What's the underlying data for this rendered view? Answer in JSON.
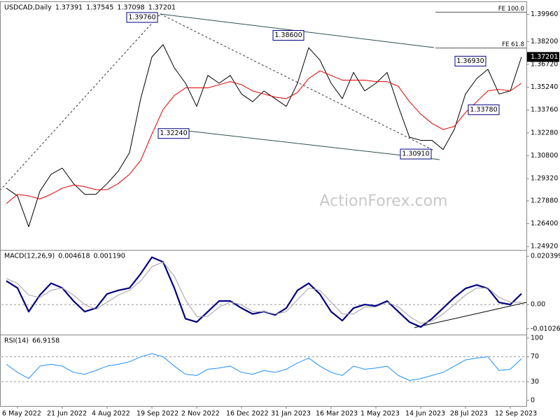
{
  "chart_data": [
    {
      "type": "line",
      "symbol": "USDCAD,Daily",
      "ohlc": [
        1.37391,
        1.37545,
        1.37098,
        1.37201
      ],
      "watermark": "ActionForex.com",
      "ylim": [
        1.247,
        1.408
      ],
      "yticks": [
        {
          "value": 1.3996,
          "label": "1.39960"
        },
        {
          "value": 1.382,
          "label": "1.38200"
        },
        {
          "value": 1.3672,
          "label": "1.36720"
        },
        {
          "value": 1.3524,
          "label": "1.35240"
        },
        {
          "value": 1.3376,
          "label": "1.33760"
        },
        {
          "value": 1.3228,
          "label": "1.32280"
        },
        {
          "value": 1.308,
          "label": "1.30800"
        },
        {
          "value": 1.2932,
          "label": "1.29320"
        },
        {
          "value": 1.2788,
          "label": "1.27880"
        },
        {
          "value": 1.264,
          "label": "1.26400"
        },
        {
          "value": 1.2492,
          "label": "1.24920"
        }
      ],
      "last_price": 1.37201,
      "series": [
        {
          "name": "Close",
          "color": "#000000",
          "values": [
            1.287,
            1.282,
            1.262,
            1.285,
            1.296,
            1.3,
            1.29,
            1.283,
            1.283,
            1.29,
            1.298,
            1.31,
            1.345,
            1.372,
            1.38,
            1.365,
            1.355,
            1.34,
            1.36,
            1.355,
            1.36,
            1.348,
            1.343,
            1.35,
            1.345,
            1.34,
            1.355,
            1.378,
            1.37,
            1.355,
            1.345,
            1.362,
            1.35,
            1.355,
            1.362,
            1.34,
            1.32,
            1.318,
            1.318,
            1.312,
            1.325,
            1.348,
            1.358,
            1.364,
            1.348,
            1.35,
            1.372
          ]
        },
        {
          "name": "MA",
          "color": "#e00000",
          "values": [
            1.277,
            1.283,
            1.282,
            1.28,
            1.283,
            1.287,
            1.289,
            1.288,
            1.286,
            1.286,
            1.29,
            1.296,
            1.305,
            1.322,
            1.338,
            1.347,
            1.352,
            1.352,
            1.352,
            1.354,
            1.356,
            1.354,
            1.35,
            1.348,
            1.346,
            1.345,
            1.349,
            1.358,
            1.363,
            1.36,
            1.357,
            1.357,
            1.357,
            1.356,
            1.356,
            1.353,
            1.343,
            1.335,
            1.329,
            1.325,
            1.327,
            1.336,
            1.343,
            1.35,
            1.351,
            1.35,
            1.355
          ]
        }
      ],
      "annotations": [
        {
          "value": 1.3976,
          "label": "1.39760"
        },
        {
          "value": 1.386,
          "label": "1.38600"
        },
        {
          "value": 1.3693,
          "label": "1.36930"
        },
        {
          "value": 1.3378,
          "label": "1.33780"
        },
        {
          "value": 1.3224,
          "label": "1.32240"
        },
        {
          "value": 1.3091,
          "label": "1.30910"
        }
      ],
      "levels": [
        {
          "value": 1.401,
          "label": "FE 100.0"
        },
        {
          "value": 1.3778,
          "label": "FE 61.8"
        }
      ]
    },
    {
      "type": "line",
      "indicator": "MACD(12,26,9)",
      "readings": [
        0.004618,
        {
          "value": 0.00119,
          "label": "0.001190"
        }
      ],
      "ylim": [
        -0.0127,
        0.0231
      ],
      "yticks": [
        0.020399,
        {
          "value": 0,
          "label": "0.00"
        },
        -0.01026
      ],
      "levels": [
        0
      ],
      "series": [
        {
          "name": "MACD",
          "color": "#000080",
          "values": [
            0.01,
            0.007,
            -0.003,
            0.004,
            0.009,
            0.007,
            0.0015,
            -0.003,
            -0.0015,
            0.0045,
            0.006,
            0.007,
            0.013,
            0.02,
            0.018,
            0.007,
            -0.006,
            -0.0074,
            -0.003,
            0.0015,
            0.0015,
            -0.0015,
            -0.004,
            -0.003,
            -0.0044,
            -0.0015,
            0.006,
            0.009,
            0.0044,
            -0.003,
            -0.0068,
            -0.0015,
            0,
            -0.0006,
            0.0015,
            -0.003,
            -0.0074,
            -0.0095,
            -0.006,
            -0.0015,
            0.003,
            0.0068,
            0.0083,
            0.0068,
            0.0009,
            0,
            0.0046
          ]
        },
        {
          "name": "Signal",
          "color": "#a0a0a0",
          "values": [
            0.011,
            0.009,
            0.004,
            0.003,
            0.006,
            0.007,
            0.004,
            0,
            -0.002,
            0.001,
            0.004,
            0.006,
            0.01,
            0.016,
            0.018,
            0.012,
            0.002,
            -0.005,
            -0.005,
            -0.001,
            0.001,
            0,
            -0.003,
            -0.003,
            -0.004,
            -0.003,
            0.002,
            0.007,
            0.006,
            0.001,
            -0.004,
            -0.004,
            -0.001,
            -0.001,
            0.001,
            -0.001,
            -0.005,
            -0.008,
            -0.007,
            -0.004,
            0,
            0.004,
            0.007,
            0.007,
            0.003,
            0.001,
            0.001
          ]
        }
      ]
    },
    {
      "type": "line",
      "indicator": "RSI(14)",
      "readings": [
        66.9158
      ],
      "ylim": [
        -9,
        105.6
      ],
      "yticks": [
        100,
        70,
        30,
        0
      ],
      "levels": [
        70,
        30
      ],
      "categories": [
        null,
        "6 May 2022",
        null,
        null,
        null,
        "21 Jun 2022",
        null,
        null,
        null,
        "4 Aug 2022",
        null,
        null,
        null,
        "19 Sep 2022",
        null,
        null,
        null,
        "2 Nov 2022",
        null,
        null,
        null,
        "16 Dec 2022",
        null,
        null,
        null,
        "31 Jan 2023",
        null,
        null,
        null,
        "16 Mar 2023",
        null,
        null,
        null,
        "1 May 2023",
        null,
        null,
        null,
        "14 Jun 2023",
        null,
        null,
        null,
        "28 Jul 2023",
        null,
        null,
        null,
        "12 Sep 2023",
        null
      ],
      "series": [
        {
          "name": "RSI",
          "color": "#1e90ff",
          "values": [
            58,
            45,
            35,
            55,
            58,
            55,
            45,
            42,
            48,
            55,
            58,
            62,
            70,
            75,
            70,
            55,
            42,
            40,
            50,
            52,
            55,
            45,
            42,
            48,
            45,
            50,
            60,
            68,
            55,
            45,
            40,
            55,
            50,
            52,
            55,
            40,
            32,
            35,
            40,
            45,
            55,
            65,
            68,
            70,
            48,
            50,
            67
          ]
        }
      ]
    }
  ]
}
